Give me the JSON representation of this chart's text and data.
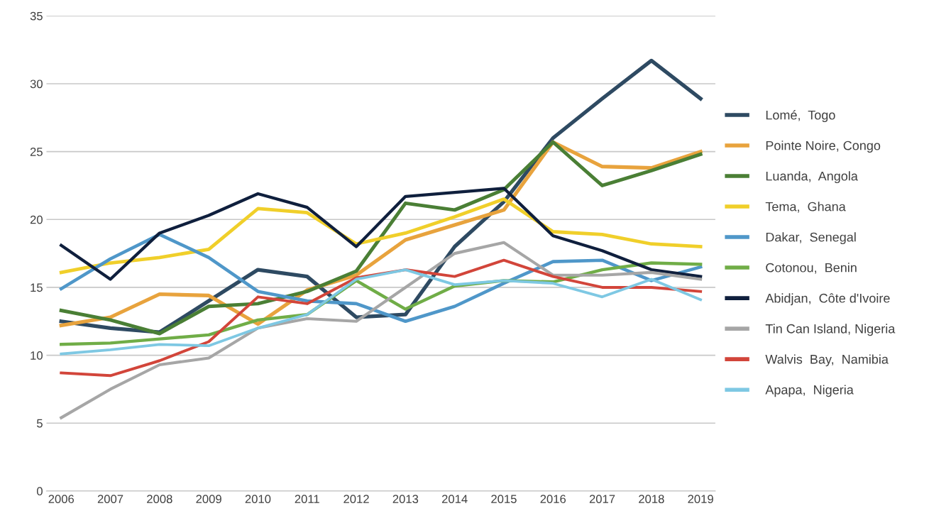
{
  "chart_data": {
    "type": "line",
    "categories": [
      "2006",
      "2007",
      "2008",
      "2009",
      "2010",
      "2011",
      "2012",
      "2013",
      "2014",
      "2015",
      "2016",
      "2017",
      "2018",
      "2019"
    ],
    "ylim": [
      0,
      35
    ],
    "yticks": [
      0,
      5,
      10,
      15,
      20,
      25,
      30,
      35
    ],
    "grid": "y",
    "legend": "right",
    "marker": "none",
    "line_style": "solid",
    "series": [
      {
        "name": "Lomé,  Togo",
        "color": "#2e4a62",
        "values": [
          12.5,
          12.0,
          11.7,
          14.0,
          16.3,
          15.8,
          12.8,
          13.0,
          18.0,
          21.3,
          26.0,
          28.9,
          31.7,
          28.9
        ]
      },
      {
        "name": "Pointe Noire, Congo",
        "color": "#e8a33d",
        "values": [
          12.2,
          12.8,
          14.5,
          14.4,
          12.3,
          14.8,
          15.9,
          18.5,
          19.6,
          20.7,
          25.7,
          23.9,
          23.8,
          25.0
        ]
      },
      {
        "name": "Luanda,  Angola",
        "color": "#4a7f35",
        "values": [
          13.3,
          12.6,
          11.6,
          13.6,
          13.8,
          14.7,
          16.2,
          21.2,
          20.7,
          22.2,
          25.7,
          22.5,
          23.6,
          24.8
        ]
      },
      {
        "name": "Tema,  Ghana",
        "color": "#f0cf2a",
        "values": [
          16.1,
          16.8,
          17.2,
          17.8,
          20.8,
          20.5,
          18.2,
          19.0,
          20.2,
          21.5,
          19.1,
          18.9,
          18.2,
          18.0
        ]
      },
      {
        "name": "Dakar,  Senegal",
        "color": "#4f97c9",
        "values": [
          14.9,
          17.1,
          18.9,
          17.2,
          14.7,
          14.0,
          13.8,
          12.5,
          13.6,
          15.3,
          16.9,
          17.0,
          15.5,
          16.5
        ]
      },
      {
        "name": "Cotonou,  Benin",
        "color": "#70ad47",
        "values": [
          10.8,
          10.9,
          11.2,
          11.5,
          12.6,
          13.0,
          15.5,
          13.4,
          15.1,
          15.5,
          15.4,
          16.3,
          16.8,
          16.7
        ]
      },
      {
        "name": "Abidjan,  Côte d'Ivoire",
        "color": "#0f1f3d",
        "values": [
          18.1,
          15.6,
          19.0,
          20.3,
          21.9,
          20.9,
          18.0,
          21.7,
          22.0,
          22.3,
          18.8,
          17.7,
          16.3,
          15.8
        ]
      },
      {
        "name": "Tin Can Island, Nigeria",
        "color": "#a6a6a6",
        "values": [
          5.4,
          7.5,
          9.3,
          9.8,
          12.0,
          12.7,
          12.5,
          15.0,
          17.5,
          18.3,
          15.9,
          15.9,
          16.1,
          15.6
        ]
      },
      {
        "name": "Walvis  Bay,  Namibia",
        "color": "#d2453a",
        "values": [
          8.7,
          8.5,
          9.6,
          11.0,
          14.3,
          13.8,
          15.7,
          16.3,
          15.8,
          17.0,
          15.8,
          15.0,
          15.0,
          14.7
        ]
      },
      {
        "name": "Apapa,  Nigeria",
        "color": "#7ec8e3",
        "values": [
          10.1,
          10.4,
          10.8,
          10.7,
          12.0,
          13.0,
          15.6,
          16.3,
          15.2,
          15.5,
          15.3,
          14.3,
          15.6,
          14.1
        ]
      }
    ]
  }
}
